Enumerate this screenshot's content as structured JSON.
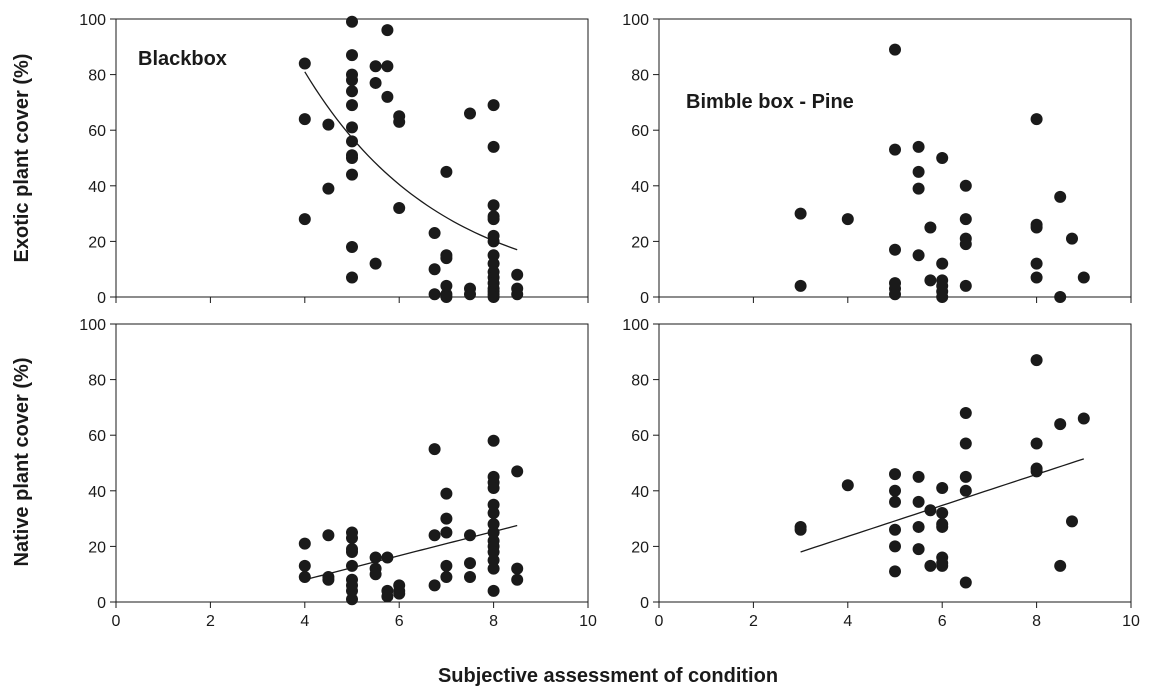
{
  "figure": {
    "ylabel_top": "Exotic plant cover (%)",
    "ylabel_bottom": "Native plant cover (%)",
    "xlabel": "Subjective assessment of condition"
  },
  "chart_data": [
    {
      "type": "scatter",
      "panel": "top-left",
      "title": "Blackbox",
      "xlabel": "",
      "ylabel": "Exotic plant cover (%)",
      "xlim": [
        0,
        10
      ],
      "ylim": [
        0,
        100
      ],
      "xticks": [
        "0",
        "2",
        "4",
        "6",
        "8",
        "10"
      ],
      "yticks": [
        "0",
        "20",
        "40",
        "60",
        "80",
        "100"
      ],
      "show_xtick_labels": false,
      "grid": false,
      "trend": {
        "type": "exponential",
        "x_start": 4,
        "x_end": 8.5,
        "y_start": 81,
        "y_end": 17
      },
      "points": [
        [
          4,
          84
        ],
        [
          4,
          64
        ],
        [
          4,
          28
        ],
        [
          4.5,
          62
        ],
        [
          4.5,
          39
        ],
        [
          5,
          99
        ],
        [
          5,
          87
        ],
        [
          5,
          80
        ],
        [
          5,
          78
        ],
        [
          5,
          74
        ],
        [
          5,
          69
        ],
        [
          5,
          61
        ],
        [
          5,
          56
        ],
        [
          5,
          51
        ],
        [
          5,
          50
        ],
        [
          5,
          44
        ],
        [
          5,
          18
        ],
        [
          5,
          7
        ],
        [
          5.5,
          83
        ],
        [
          5.5,
          77
        ],
        [
          5.5,
          12
        ],
        [
          5.75,
          96
        ],
        [
          5.75,
          83
        ],
        [
          5.75,
          72
        ],
        [
          6,
          65
        ],
        [
          6,
          63
        ],
        [
          6,
          32
        ],
        [
          6.75,
          23
        ],
        [
          6.75,
          10
        ],
        [
          6.75,
          1
        ],
        [
          7,
          45
        ],
        [
          7,
          15
        ],
        [
          7,
          14
        ],
        [
          7,
          4
        ],
        [
          7,
          1
        ],
        [
          7,
          0
        ],
        [
          7.5,
          66
        ],
        [
          7.5,
          3
        ],
        [
          7.5,
          1
        ],
        [
          8,
          69
        ],
        [
          8,
          54
        ],
        [
          8,
          33
        ],
        [
          8,
          29
        ],
        [
          8,
          28
        ],
        [
          8,
          22
        ],
        [
          8,
          20
        ],
        [
          8,
          15
        ],
        [
          8,
          12
        ],
        [
          8,
          9
        ],
        [
          8,
          7
        ],
        [
          8,
          5
        ],
        [
          8,
          3
        ],
        [
          8,
          2
        ],
        [
          8,
          1
        ],
        [
          8,
          0
        ],
        [
          8.5,
          8
        ],
        [
          8.5,
          3
        ],
        [
          8.5,
          1
        ]
      ]
    },
    {
      "type": "scatter",
      "panel": "top-right",
      "title": "Bimble box - Pine",
      "xlabel": "",
      "ylabel": "",
      "xlim": [
        0,
        10
      ],
      "ylim": [
        0,
        100
      ],
      "xticks": [
        "0",
        "2",
        "4",
        "6",
        "8",
        "10"
      ],
      "yticks": [
        "0",
        "20",
        "40",
        "60",
        "80",
        "100"
      ],
      "show_xtick_labels": false,
      "grid": false,
      "trend": null,
      "points": [
        [
          3,
          30
        ],
        [
          3,
          4
        ],
        [
          4,
          28
        ],
        [
          5,
          89
        ],
        [
          5,
          53
        ],
        [
          5,
          17
        ],
        [
          5,
          5
        ],
        [
          5,
          3
        ],
        [
          5,
          1
        ],
        [
          5.5,
          54
        ],
        [
          5.5,
          45
        ],
        [
          5.5,
          39
        ],
        [
          5.5,
          15
        ],
        [
          5.75,
          25
        ],
        [
          5.75,
          6
        ],
        [
          6,
          50
        ],
        [
          6,
          12
        ],
        [
          6,
          6
        ],
        [
          6,
          4
        ],
        [
          6,
          2
        ],
        [
          6,
          0
        ],
        [
          6.5,
          40
        ],
        [
          6.5,
          28
        ],
        [
          6.5,
          21
        ],
        [
          6.5,
          19
        ],
        [
          6.5,
          4
        ],
        [
          8,
          64
        ],
        [
          8,
          26
        ],
        [
          8,
          25
        ],
        [
          8,
          12
        ],
        [
          8,
          7
        ],
        [
          8.5,
          36
        ],
        [
          8.5,
          0
        ],
        [
          8.75,
          21
        ],
        [
          9,
          7
        ]
      ]
    },
    {
      "type": "scatter",
      "panel": "bottom-left",
      "title": "",
      "xlabel": "",
      "ylabel": "Native plant cover (%)",
      "xlim": [
        0,
        10
      ],
      "ylim": [
        0,
        100
      ],
      "xticks": [
        "0",
        "2",
        "4",
        "6",
        "8",
        "10"
      ],
      "yticks": [
        "0",
        "20",
        "40",
        "60",
        "80",
        "100"
      ],
      "show_xtick_labels": true,
      "grid": false,
      "trend": {
        "type": "linear",
        "x_start": 4,
        "x_end": 8.5,
        "y_start": 8,
        "y_end": 27.5
      },
      "points": [
        [
          4,
          21
        ],
        [
          4,
          13
        ],
        [
          4,
          9
        ],
        [
          4.5,
          24
        ],
        [
          4.5,
          9
        ],
        [
          4.5,
          8
        ],
        [
          5,
          25
        ],
        [
          5,
          23
        ],
        [
          5,
          19
        ],
        [
          5,
          18
        ],
        [
          5,
          13
        ],
        [
          5,
          8
        ],
        [
          5,
          6
        ],
        [
          5,
          4
        ],
        [
          5,
          1
        ],
        [
          5.5,
          16
        ],
        [
          5.5,
          12
        ],
        [
          5.5,
          10
        ],
        [
          5.75,
          16
        ],
        [
          5.75,
          4
        ],
        [
          5.75,
          2
        ],
        [
          6,
          6
        ],
        [
          6,
          4
        ],
        [
          6,
          3
        ],
        [
          6.75,
          55
        ],
        [
          6.75,
          24
        ],
        [
          6.75,
          6
        ],
        [
          7,
          39
        ],
        [
          7,
          30
        ],
        [
          7,
          25
        ],
        [
          7,
          13
        ],
        [
          7,
          9
        ],
        [
          7.5,
          24
        ],
        [
          7.5,
          14
        ],
        [
          7.5,
          9
        ],
        [
          8,
          58
        ],
        [
          8,
          45
        ],
        [
          8,
          43
        ],
        [
          8,
          41
        ],
        [
          8,
          35
        ],
        [
          8,
          32
        ],
        [
          8,
          28
        ],
        [
          8,
          25
        ],
        [
          8,
          22
        ],
        [
          8,
          20
        ],
        [
          8,
          18
        ],
        [
          8,
          15
        ],
        [
          8,
          12
        ],
        [
          8,
          4
        ],
        [
          8.5,
          47
        ],
        [
          8.5,
          12
        ],
        [
          8.5,
          8
        ]
      ]
    },
    {
      "type": "scatter",
      "panel": "bottom-right",
      "title": "",
      "xlabel": "",
      "ylabel": "",
      "xlim": [
        0,
        10
      ],
      "ylim": [
        0,
        100
      ],
      "xticks": [
        "0",
        "2",
        "4",
        "6",
        "8",
        "10"
      ],
      "yticks": [
        "0",
        "20",
        "40",
        "60",
        "80",
        "100"
      ],
      "show_xtick_labels": true,
      "grid": false,
      "trend": {
        "type": "linear",
        "x_start": 3,
        "x_end": 9,
        "y_start": 18,
        "y_end": 51.5
      },
      "points": [
        [
          3,
          27
        ],
        [
          3,
          26
        ],
        [
          4,
          42
        ],
        [
          5,
          46
        ],
        [
          5,
          40
        ],
        [
          5,
          36
        ],
        [
          5,
          26
        ],
        [
          5,
          20
        ],
        [
          5,
          11
        ],
        [
          5.5,
          45
        ],
        [
          5.5,
          36
        ],
        [
          5.5,
          27
        ],
        [
          5.5,
          19
        ],
        [
          5.75,
          33
        ],
        [
          5.75,
          13
        ],
        [
          6,
          41
        ],
        [
          6,
          32
        ],
        [
          6,
          28
        ],
        [
          6,
          27
        ],
        [
          6,
          16
        ],
        [
          6,
          14
        ],
        [
          6,
          13
        ],
        [
          6.5,
          68
        ],
        [
          6.5,
          57
        ],
        [
          6.5,
          45
        ],
        [
          6.5,
          40
        ],
        [
          6.5,
          7
        ],
        [
          8,
          87
        ],
        [
          8,
          57
        ],
        [
          8,
          48
        ],
        [
          8,
          47
        ],
        [
          8.5,
          64
        ],
        [
          8.5,
          13
        ],
        [
          8.75,
          29
        ],
        [
          9,
          66
        ]
      ]
    }
  ]
}
